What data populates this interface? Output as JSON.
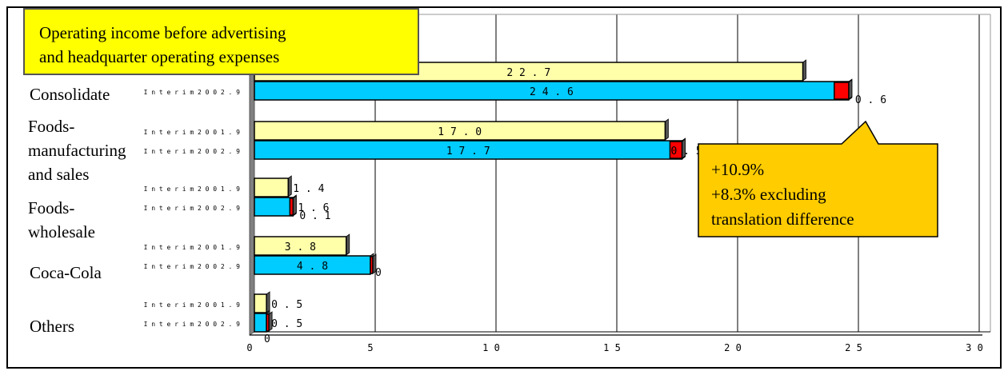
{
  "chart_data": {
    "type": "bar",
    "orientation": "horizontal",
    "title": "Operating income before advertising and headquarter operating expenses",
    "title_lines": [
      "Operating income before advertising",
      "and headquarter operating expenses"
    ],
    "xlim": [
      0,
      30
    ],
    "x_ticks": [
      "0",
      "5",
      "1 0",
      "1 5",
      "2 0",
      "2 5",
      "3 0"
    ],
    "categories": [
      {
        "id": "consolidate",
        "label_lines": [
          "Consolidate"
        ]
      },
      {
        "id": "foods-mfg",
        "label_lines": [
          "Foods-",
          "manufacturing",
          "and sales"
        ]
      },
      {
        "id": "foods-wholesale",
        "label_lines": [
          "Foods-",
          "wholesale"
        ]
      },
      {
        "id": "coca-cola",
        "label_lines": [
          "Coca-Cola"
        ]
      },
      {
        "id": "others",
        "label_lines": [
          "Others"
        ]
      }
    ],
    "series": [
      {
        "name": "Interim 2001.9",
        "label": "I n t e r i m  2 0 0 1 . 9",
        "color": "#ffffaa",
        "values": [
          22.7,
          17.0,
          1.4,
          3.8,
          0.5
        ],
        "value_labels": [
          "2 2 . 7",
          "1 7 . 0",
          "1 . 4",
          "3 . 8",
          "0 . 5"
        ]
      },
      {
        "name": "Interim 2002.9",
        "label": "I n t e r i m  2 0 0 2 . 9",
        "color": "#00ccff",
        "values": [
          24.6,
          17.7,
          1.6,
          4.8,
          0.5
        ],
        "value_labels": [
          "2 4 . 6",
          "1 7 . 7",
          "1 . 6",
          "4 . 8",
          "0 . 5"
        ],
        "increase": [
          0.6,
          0.5,
          0.1,
          0,
          0
        ],
        "increase_labels": [
          "0 . 6",
          "0 . 5",
          "0 . 1",
          "0",
          "0"
        ],
        "increase_color": "#ff0000"
      }
    ],
    "callout_lines": [
      "+10.9%",
      "+8.3% excluding",
      "translation difference"
    ],
    "colors": {
      "series_2001": "#ffffaa",
      "series_2002": "#00ccff",
      "increase": "#ff0000",
      "title_bg": "#ffff00",
      "callout_bg": "#ffcc00",
      "baseline": "#808080"
    }
  }
}
